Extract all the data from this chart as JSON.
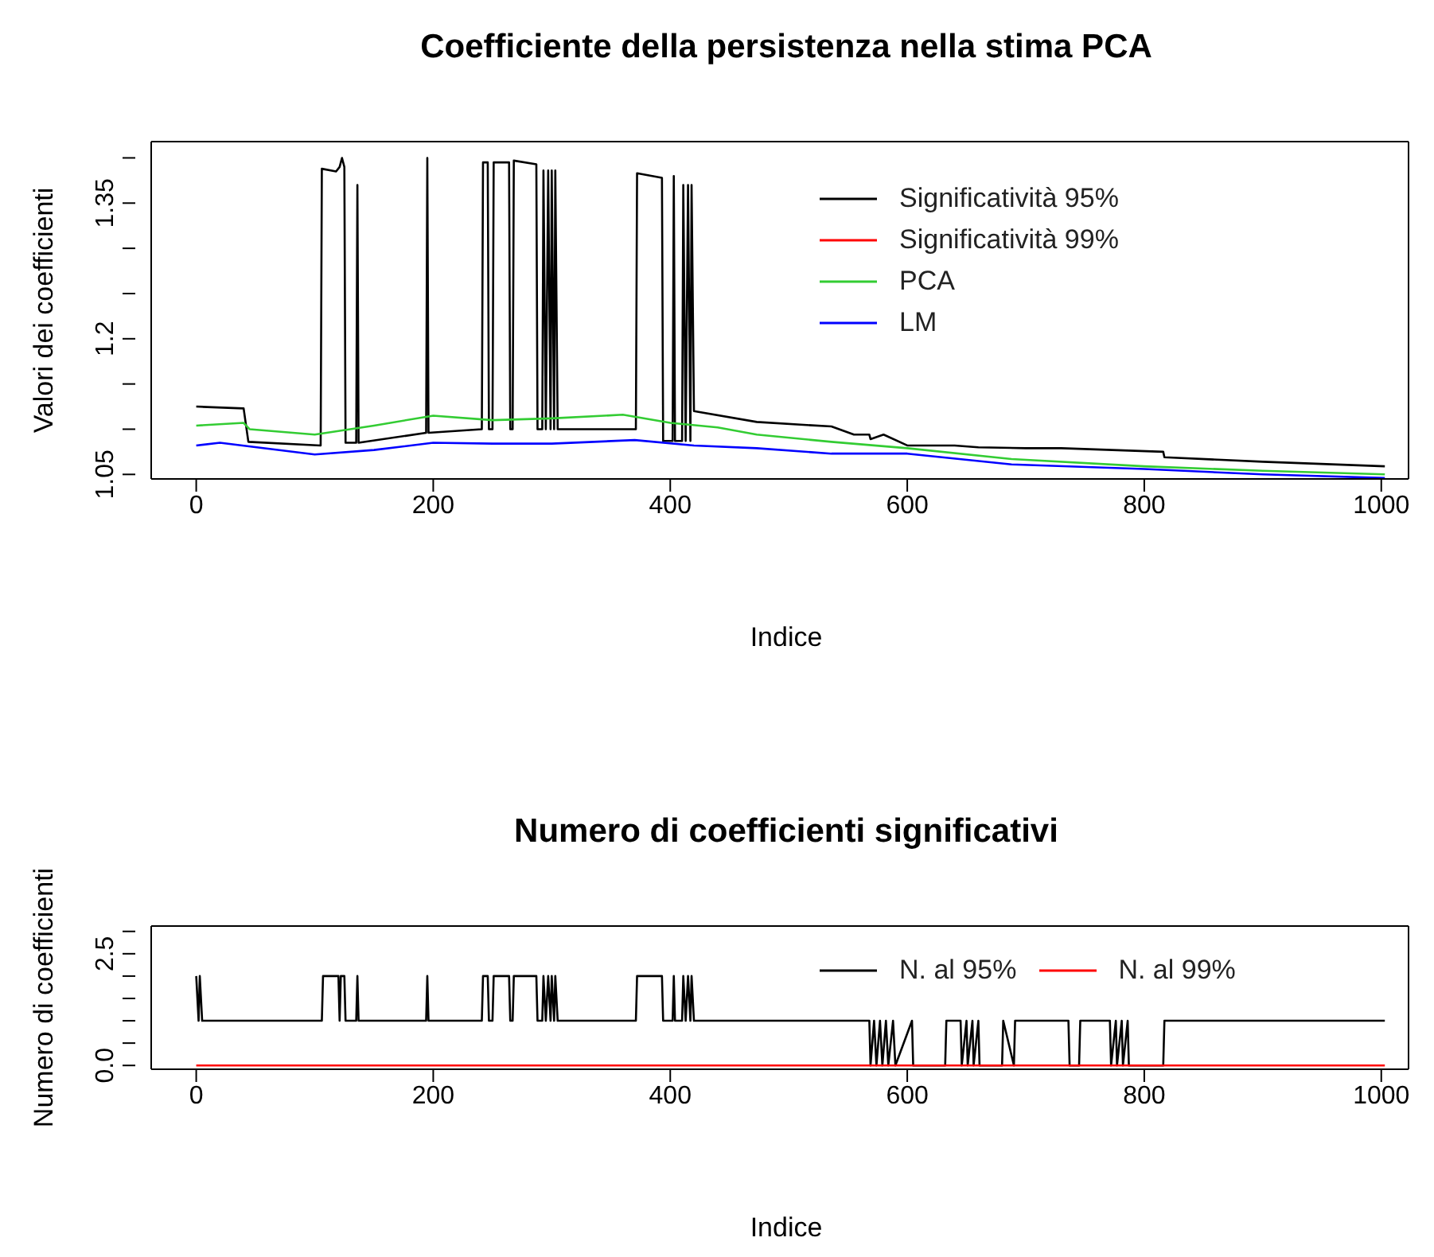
{
  "chart_data": [
    {
      "type": "line",
      "title": "Coefficiente della persistenza nella stima PCA",
      "xlabel": "Indice",
      "ylabel": "Valori dei coefficienti",
      "xlim": [
        -38,
        1023
      ],
      "ylim": [
        1.045,
        1.418
      ],
      "xticks": [
        0,
        200,
        400,
        600,
        800,
        1000
      ],
      "yticks": [
        1.05,
        {
          "value": 1.1,
          "label": null
        },
        {
          "value": 1.15,
          "label": null
        },
        1.2,
        {
          "value": 1.25,
          "label": null
        },
        {
          "value": 1.3,
          "label": null
        },
        1.35,
        {
          "value": 1.4,
          "label": null
        }
      ],
      "legend": "top right",
      "line_style": "solid",
      "series": [
        {
          "name": "Significatività 95%",
          "color": "#000000",
          "x": [
            0,
            40,
            44,
            105,
            106,
            118,
            121,
            123,
            125,
            126,
            135,
            136,
            137,
            194,
            195,
            196,
            241,
            242,
            246,
            247,
            250,
            251,
            264,
            265,
            267,
            268,
            287,
            288,
            292,
            293,
            295,
            297,
            299,
            300,
            302,
            303,
            305,
            371,
            372,
            393,
            394,
            402,
            403,
            404,
            410,
            411,
            413,
            415,
            417,
            418,
            420,
            473,
            536,
            555,
            568,
            569,
            580,
            600,
            640,
            660,
            700,
            730,
            816,
            817,
            900,
            1003
          ],
          "values": [
            1.125,
            1.123,
            1.086,
            1.082,
            1.388,
            1.385,
            1.39,
            1.4,
            1.39,
            1.085,
            1.085,
            1.37,
            1.085,
            1.096,
            1.4,
            1.096,
            1.1,
            1.395,
            1.395,
            1.1,
            1.1,
            1.395,
            1.395,
            1.1,
            1.1,
            1.397,
            1.393,
            1.1,
            1.1,
            1.386,
            1.1,
            1.386,
            1.1,
            1.386,
            1.1,
            1.386,
            1.1,
            1.1,
            1.383,
            1.378,
            1.087,
            1.087,
            1.38,
            1.087,
            1.087,
            1.37,
            1.087,
            1.37,
            1.087,
            1.37,
            1.12,
            1.108,
            1.103,
            1.094,
            1.094,
            1.089,
            1.094,
            1.082,
            1.082,
            1.08,
            1.079,
            1.079,
            1.075,
            1.069,
            1.064,
            1.059
          ]
        },
        {
          "name": "Significatività 99%",
          "color": "#ff0000"
        },
        {
          "name": "PCA",
          "color": "#33cc33",
          "x": [
            0,
            40,
            45,
            100,
            150,
            200,
            250,
            300,
            360,
            400,
            440,
            473,
            536,
            600,
            688,
            800,
            900,
            1003
          ],
          "values": [
            1.104,
            1.107,
            1.1,
            1.094,
            1.104,
            1.115,
            1.11,
            1.112,
            1.116,
            1.107,
            1.102,
            1.094,
            1.086,
            1.079,
            1.067,
            1.059,
            1.054,
            1.05
          ]
        },
        {
          "name": "LM",
          "color": "#0000ff",
          "x": [
            0,
            20,
            100,
            150,
            200,
            250,
            300,
            370,
            420,
            473,
            536,
            600,
            688,
            800,
            900,
            1003
          ],
          "values": [
            1.082,
            1.085,
            1.072,
            1.077,
            1.085,
            1.084,
            1.084,
            1.088,
            1.082,
            1.079,
            1.073,
            1.073,
            1.061,
            1.056,
            1.05,
            1.046
          ]
        }
      ]
    },
    {
      "type": "line",
      "title": "Numero di coefficienti significativi",
      "xlabel": "Indice",
      "ylabel": "Numero di coefficienti",
      "xlim": [
        -38,
        1023
      ],
      "ylim": [
        -0.085,
        3.12
      ],
      "xticks": [
        0,
        200,
        400,
        600,
        800,
        1000
      ],
      "yticks": [
        {
          "value": 0,
          "label": "0.0"
        },
        {
          "value": 0.5,
          "label": null
        },
        {
          "value": 1,
          "label": null
        },
        {
          "value": 1.5,
          "label": null
        },
        {
          "value": 2,
          "label": null
        },
        {
          "value": 2.5,
          "label": "2.5"
        },
        {
          "value": 3,
          "label": null
        }
      ],
      "legend": "top right",
      "line_style": "solid",
      "series": [
        {
          "name": "N. al 95%",
          "color": "#000000",
          "x": [
            0,
            2,
            3,
            5,
            106,
            107,
            120,
            121,
            122,
            125,
            126,
            135,
            136,
            137,
            194,
            195,
            196,
            241,
            242,
            246,
            247,
            250,
            251,
            264,
            265,
            267,
            268,
            287,
            288,
            292,
            293,
            295,
            297,
            299,
            300,
            302,
            303,
            305,
            371,
            372,
            393,
            394,
            402,
            403,
            404,
            410,
            411,
            413,
            415,
            417,
            418,
            420,
            568,
            569,
            572,
            574,
            577,
            579,
            582,
            584,
            588,
            590,
            604,
            605,
            632,
            633,
            645,
            646,
            650,
            651,
            655,
            656,
            660,
            661,
            680,
            681,
            690,
            691,
            736,
            737,
            745,
            746,
            771,
            772,
            776,
            777,
            781,
            782,
            786,
            787,
            790,
            791,
            816,
            817,
            1003
          ],
          "values": [
            2,
            1,
            2,
            1,
            1,
            2,
            2,
            1,
            2,
            2,
            1,
            1,
            2,
            1,
            1,
            2,
            1,
            1,
            2,
            2,
            1,
            1,
            2,
            2,
            1,
            1,
            2,
            2,
            1,
            1,
            2,
            1,
            2,
            1,
            2,
            1,
            2,
            1,
            1,
            2,
            2,
            1,
            1,
            2,
            1,
            1,
            2,
            1,
            2,
            1,
            2,
            1,
            1,
            0,
            1,
            0,
            1,
            0,
            1,
            0,
            1,
            0,
            1,
            0,
            0,
            1,
            1,
            0,
            1,
            0,
            1,
            0,
            1,
            0,
            0,
            1,
            0,
            1,
            1,
            0,
            0,
            1,
            1,
            0,
            1,
            0,
            1,
            0,
            1,
            0,
            0,
            0,
            0,
            1,
            1
          ]
        },
        {
          "name": "N. al 99%",
          "color": "#ff0000",
          "x": [
            0,
            1003
          ],
          "values": [
            0,
            0
          ]
        }
      ]
    }
  ]
}
